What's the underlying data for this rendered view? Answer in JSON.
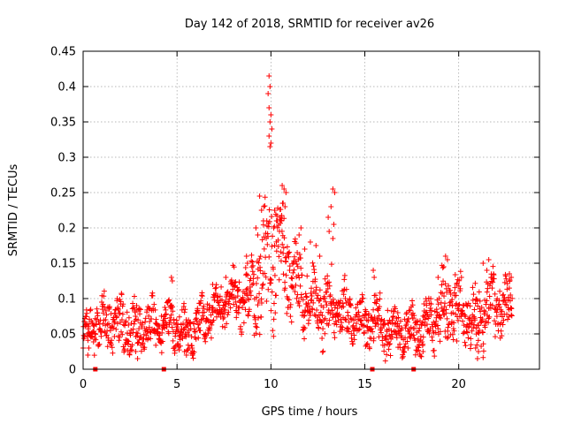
{
  "chart_data": {
    "type": "scatter",
    "title": "Day 142 of 2018, SRMTID for receiver av26",
    "xlabel": "GPS time / hours",
    "ylabel": "SRMTID / TECUs",
    "xlim": [
      0,
      24.3
    ],
    "ylim": [
      0,
      0.45
    ],
    "xticks": [
      0,
      5,
      10,
      15,
      20
    ],
    "yticks": [
      0,
      0.05,
      0.1,
      0.15,
      0.2,
      0.25,
      0.3,
      0.35,
      0.4,
      0.45
    ],
    "grid": true,
    "marker": "+",
    "series_color": "#ff0000",
    "gap_markers_x": [
      0.65,
      4.3,
      15.4,
      17.6
    ],
    "envelope": {
      "hours": [
        0,
        0.5,
        1,
        1.5,
        2,
        2.5,
        3,
        3.5,
        4,
        4.5,
        5,
        5.5,
        6,
        6.5,
        7,
        7.5,
        8,
        8.5,
        9,
        9.5,
        10,
        10.5,
        11,
        11.5,
        12,
        12.5,
        13,
        13.5,
        14,
        14.5,
        15,
        15.5,
        16,
        16.5,
        17,
        17.5,
        18,
        18.5,
        19,
        19.5,
        20,
        20.5,
        21,
        21.5,
        22,
        22.5
      ],
      "median": [
        0.05,
        0.06,
        0.065,
        0.065,
        0.06,
        0.06,
        0.058,
        0.06,
        0.065,
        0.07,
        0.06,
        0.05,
        0.06,
        0.075,
        0.085,
        0.09,
        0.1,
        0.095,
        0.11,
        0.13,
        0.17,
        0.16,
        0.13,
        0.11,
        0.1,
        0.09,
        0.085,
        0.09,
        0.08,
        0.07,
        0.065,
        0.07,
        0.06,
        0.055,
        0.055,
        0.055,
        0.06,
        0.07,
        0.08,
        0.09,
        0.085,
        0.08,
        0.065,
        0.085,
        0.09,
        0.09
      ],
      "spread": [
        0.02,
        0.025,
        0.03,
        0.03,
        0.03,
        0.03,
        0.03,
        0.03,
        0.03,
        0.025,
        0.025,
        0.025,
        0.025,
        0.025,
        0.025,
        0.025,
        0.03,
        0.03,
        0.04,
        0.06,
        0.09,
        0.06,
        0.05,
        0.04,
        0.035,
        0.035,
        0.04,
        0.035,
        0.03,
        0.03,
        0.03,
        0.03,
        0.03,
        0.03,
        0.025,
        0.025,
        0.03,
        0.03,
        0.04,
        0.04,
        0.035,
        0.035,
        0.035,
        0.035,
        0.035,
        0.03
      ]
    },
    "outliers": [
      [
        9.9,
        0.415
      ],
      [
        9.95,
        0.4
      ],
      [
        9.85,
        0.39
      ],
      [
        9.9,
        0.37
      ],
      [
        10.0,
        0.36
      ],
      [
        9.95,
        0.35
      ],
      [
        10.05,
        0.34
      ],
      [
        9.9,
        0.33
      ],
      [
        10.0,
        0.32
      ],
      [
        9.95,
        0.315
      ],
      [
        10.6,
        0.26
      ],
      [
        10.7,
        0.255
      ],
      [
        10.8,
        0.25
      ],
      [
        10.65,
        0.235
      ],
      [
        10.75,
        0.23
      ],
      [
        10.5,
        0.215
      ],
      [
        10.55,
        0.21
      ],
      [
        10.2,
        0.225
      ],
      [
        10.3,
        0.21
      ],
      [
        10.15,
        0.2
      ],
      [
        9.4,
        0.245
      ],
      [
        9.5,
        0.225
      ],
      [
        9.6,
        0.21
      ],
      [
        9.2,
        0.2
      ],
      [
        9.3,
        0.19
      ],
      [
        13.3,
        0.255
      ],
      [
        13.4,
        0.25
      ],
      [
        13.2,
        0.23
      ],
      [
        13.05,
        0.215
      ],
      [
        13.35,
        0.205
      ],
      [
        13.1,
        0.195
      ],
      [
        13.3,
        0.185
      ],
      [
        11.5,
        0.19
      ],
      [
        11.6,
        0.2
      ],
      [
        11.8,
        0.17
      ],
      [
        12.1,
        0.18
      ],
      [
        12.4,
        0.175
      ],
      [
        12.6,
        0.16
      ],
      [
        8.7,
        0.16
      ],
      [
        8.75,
        0.15
      ],
      [
        19.3,
        0.16
      ],
      [
        19.4,
        0.155
      ],
      [
        19.2,
        0.145
      ],
      [
        21.3,
        0.15
      ],
      [
        21.6,
        0.155
      ],
      [
        21.5,
        0.14
      ],
      [
        22.7,
        0.135
      ],
      [
        22.8,
        0.13
      ],
      [
        15.45,
        0.14
      ],
      [
        15.5,
        0.13
      ],
      [
        4.7,
        0.13
      ],
      [
        4.75,
        0.125
      ],
      [
        6.9,
        0.12
      ],
      [
        7.6,
        0.13
      ],
      [
        18.9,
        0.13
      ],
      [
        21.0,
        0.015
      ],
      [
        20.9,
        0.03
      ],
      [
        21.05,
        0.025
      ],
      [
        0.25,
        0.02
      ],
      [
        0.3,
        0.03
      ],
      [
        2.9,
        0.015
      ],
      [
        2.8,
        0.025
      ],
      [
        5.4,
        0.025
      ],
      [
        5.5,
        0.02
      ],
      [
        10.9,
        0.1
      ],
      [
        16.3,
        0.035
      ],
      [
        17.3,
        0.03
      ],
      [
        17.9,
        0.035
      ],
      [
        18.1,
        0.025
      ],
      [
        19.9,
        0.04
      ]
    ]
  }
}
